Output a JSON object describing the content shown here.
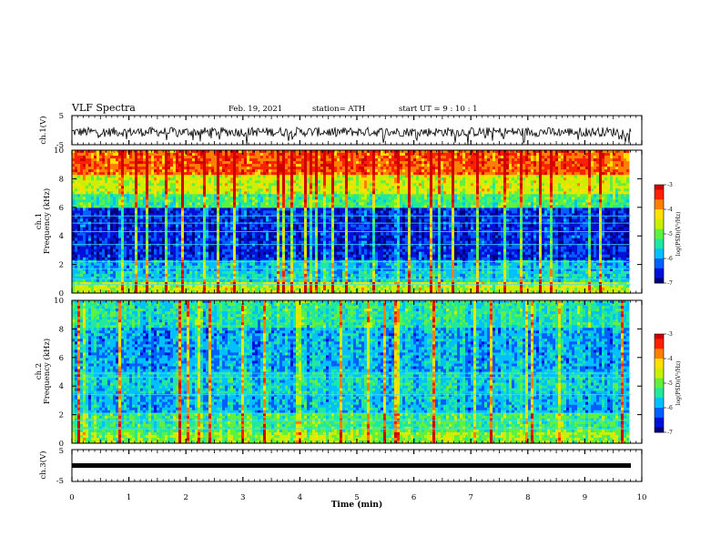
{
  "header": {
    "title": "VLF Spectra",
    "date": "Feb. 19, 2021",
    "station": "station= ATH",
    "start": "start  UT =   9  : 10 : 1"
  },
  "colors": {
    "colormap": [
      "#00007a",
      "#0010d8",
      "#0060ff",
      "#00c0ff",
      "#20e8a0",
      "#60f040",
      "#c8f000",
      "#ffe000",
      "#ff8000",
      "#ff2000",
      "#d00000"
    ],
    "trace": "#000000"
  },
  "chart_data": [
    {
      "type": "line",
      "ylabel": "ch.1(V)",
      "ylim": [
        -5,
        5
      ],
      "yticks": [
        -5,
        5
      ],
      "xlim": [
        0,
        10
      ],
      "description_series": [
        {
          "approx_mean": 0,
          "approx_range": [
            -3,
            2
          ]
        }
      ]
    },
    {
      "type": "heatmap",
      "ylabel_1": "ch.1",
      "ylabel_2": "Frequency (kHz)",
      "ylim": [
        0,
        10
      ],
      "yticks": [
        0,
        2,
        4,
        6,
        8,
        10
      ],
      "xlim": [
        0,
        10
      ],
      "colorbar": {
        "label": "log(PSD)(V²/Hz)",
        "range": [
          -7,
          -3
        ],
        "ticks": [
          -3,
          -4,
          -5,
          -6,
          -7
        ]
      },
      "band_levels": [
        {
          "from_khz": 0,
          "to_khz": 0.8,
          "level": 0.6
        },
        {
          "from_khz": 0.8,
          "to_khz": 1.5,
          "level": 0.35
        },
        {
          "from_khz": 1.5,
          "to_khz": 2.3,
          "level": 0.3
        },
        {
          "from_khz": 2.3,
          "to_khz": 5.9,
          "level": 0.12
        },
        {
          "from_khz": 5.9,
          "to_khz": 7.0,
          "level": 0.45
        },
        {
          "from_khz": 7.0,
          "to_khz": 8.3,
          "level": 0.62
        },
        {
          "from_khz": 8.3,
          "to_khz": 10,
          "level": 0.85
        }
      ],
      "lines_khz": [
        0.6,
        1.0,
        1.7,
        2.2,
        3.4,
        4.3,
        4.9,
        5.4
      ]
    },
    {
      "type": "heatmap",
      "ylabel_1": "ch.2",
      "ylabel_2": "Frequency (kHz)",
      "ylim": [
        0,
        10
      ],
      "yticks": [
        0,
        2,
        4,
        6,
        8,
        10
      ],
      "xlim": [
        0,
        10
      ],
      "colorbar": {
        "label": "log(PSD)(V²/Hz)",
        "range": [
          -7,
          -3
        ],
        "ticks": [
          -3,
          -4,
          -5,
          -6,
          -7
        ]
      },
      "band_levels": [
        {
          "from_khz": 0,
          "to_khz": 0.8,
          "level": 0.55
        },
        {
          "from_khz": 0.8,
          "to_khz": 2.2,
          "level": 0.45
        },
        {
          "from_khz": 2.2,
          "to_khz": 3.5,
          "level": 0.3
        },
        {
          "from_khz": 3.5,
          "to_khz": 5.0,
          "level": 0.35
        },
        {
          "from_khz": 5.0,
          "to_khz": 8.0,
          "level": 0.28
        },
        {
          "from_khz": 8.0,
          "to_khz": 10,
          "level": 0.4
        }
      ],
      "lines_khz": [
        1.0,
        1.6,
        2.1,
        3.4,
        4.6,
        4.9
      ]
    },
    {
      "type": "line",
      "ylabel": "ch.3(V)",
      "ylim": [
        -5,
        5
      ],
      "yticks": [
        -5,
        5
      ],
      "xlim": [
        0,
        10
      ],
      "xticks": [
        0,
        1,
        2,
        3,
        4,
        5,
        6,
        7,
        8,
        9,
        10
      ],
      "xlabel": "Time (min)",
      "constant_value": 0
    }
  ]
}
